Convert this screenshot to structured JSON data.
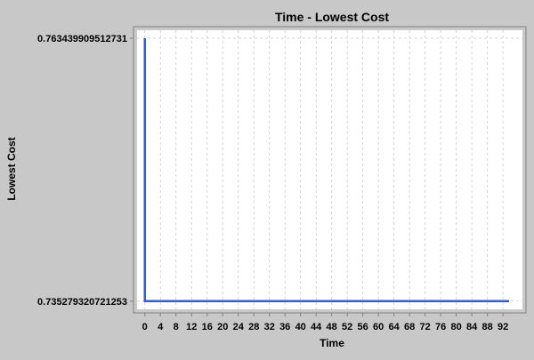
{
  "chart_data": {
    "type": "line",
    "title": "Time - Lowest Cost",
    "xlabel": "Time",
    "ylabel": "Lowest Cost",
    "xlim": [
      -2,
      97
    ],
    "ylim": [
      0.7344,
      0.7643
    ],
    "x_ticks": [
      0,
      4,
      8,
      12,
      16,
      20,
      24,
      28,
      32,
      36,
      40,
      44,
      48,
      52,
      56,
      60,
      64,
      68,
      72,
      76,
      80,
      84,
      88,
      92
    ],
    "y_ticks": [
      {
        "value": 0.763439909512731,
        "label": "0.763439909512731"
      },
      {
        "value": 0.735279320721253,
        "label": "0.735279320721253"
      }
    ],
    "grid": true,
    "legend": "none",
    "series": [
      {
        "color": "#2f5fd8",
        "points": [
          [
            0,
            0.763439909512731
          ],
          [
            0,
            0.735279320721253
          ],
          [
            100,
            0.735279320721253
          ]
        ]
      }
    ]
  }
}
